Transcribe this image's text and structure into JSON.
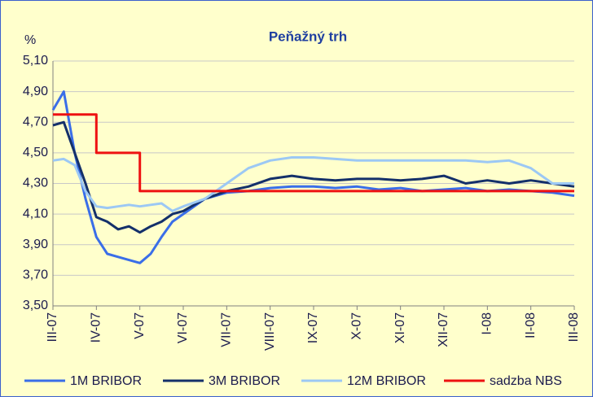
{
  "chart_data": {
    "type": "line",
    "title": "Peňažný trh",
    "y_label": "%",
    "xlim": [
      0,
      12
    ],
    "ylim": [
      3.5,
      5.1
    ],
    "xticks": [
      {
        "value": 0,
        "label": "III-07"
      },
      {
        "value": 1,
        "label": "IV-07"
      },
      {
        "value": 2,
        "label": "V-07"
      },
      {
        "value": 3,
        "label": "VI-07"
      },
      {
        "value": 4,
        "label": "VII-07"
      },
      {
        "value": 5,
        "label": "VIII-07"
      },
      {
        "value": 6,
        "label": "IX-07"
      },
      {
        "value": 7,
        "label": "X-07"
      },
      {
        "value": 8,
        "label": "XI-07"
      },
      {
        "value": 9,
        "label": "XII-07"
      },
      {
        "value": 10,
        "label": "I-08"
      },
      {
        "value": 11,
        "label": "II-08"
      },
      {
        "value": 12,
        "label": "III-08"
      }
    ],
    "yticks": [
      {
        "value": 3.5,
        "label": "3,50"
      },
      {
        "value": 3.7,
        "label": "3,70"
      },
      {
        "value": 3.9,
        "label": "3,90"
      },
      {
        "value": 4.1,
        "label": "4,10"
      },
      {
        "value": 4.3,
        "label": "4,30"
      },
      {
        "value": 4.5,
        "label": "4,50"
      },
      {
        "value": 4.7,
        "label": "4,70"
      },
      {
        "value": 4.9,
        "label": "4,90"
      },
      {
        "value": 5.1,
        "label": "5,10"
      }
    ],
    "grid": true,
    "series": [
      {
        "name": "1M BRIBOR",
        "color": "#3a6ee8",
        "x": [
          0,
          0.25,
          0.5,
          0.75,
          1,
          1.25,
          1.5,
          1.75,
          2,
          2.25,
          2.5,
          2.75,
          3,
          3.5,
          4,
          4.5,
          5,
          5.5,
          6,
          6.5,
          7,
          7.5,
          8,
          8.5,
          9,
          9.5,
          10,
          10.5,
          11,
          11.5,
          12
        ],
        "values": [
          4.78,
          4.9,
          4.5,
          4.2,
          3.95,
          3.84,
          3.82,
          3.8,
          3.78,
          3.84,
          3.95,
          4.05,
          4.1,
          4.2,
          4.24,
          4.25,
          4.27,
          4.28,
          4.28,
          4.27,
          4.28,
          4.26,
          4.27,
          4.25,
          4.26,
          4.27,
          4.25,
          4.26,
          4.25,
          4.24,
          4.22
        ]
      },
      {
        "name": "3M BRIBOR",
        "color": "#14306a",
        "x": [
          0,
          0.25,
          0.5,
          0.75,
          1,
          1.25,
          1.5,
          1.75,
          2,
          2.25,
          2.5,
          2.75,
          3,
          3.5,
          4,
          4.5,
          5,
          5.5,
          6,
          6.5,
          7,
          7.5,
          8,
          8.5,
          9,
          9.5,
          10,
          10.5,
          11,
          11.5,
          12
        ],
        "values": [
          4.68,
          4.7,
          4.5,
          4.3,
          4.08,
          4.05,
          4.0,
          4.02,
          3.98,
          4.02,
          4.05,
          4.1,
          4.12,
          4.2,
          4.25,
          4.28,
          4.33,
          4.35,
          4.33,
          4.32,
          4.33,
          4.33,
          4.32,
          4.33,
          4.35,
          4.3,
          4.32,
          4.3,
          4.32,
          4.3,
          4.28
        ]
      },
      {
        "name": "12M BRIBOR",
        "color": "#9cc8f4",
        "x": [
          0,
          0.25,
          0.5,
          0.75,
          1,
          1.25,
          1.5,
          1.75,
          2,
          2.25,
          2.5,
          2.75,
          3,
          3.5,
          4,
          4.5,
          5,
          5.5,
          6,
          6.5,
          7,
          7.5,
          8,
          8.5,
          9,
          9.5,
          10,
          10.5,
          11,
          11.5,
          12
        ],
        "values": [
          4.45,
          4.46,
          4.42,
          4.25,
          4.15,
          4.14,
          4.15,
          4.16,
          4.15,
          4.16,
          4.17,
          4.12,
          4.15,
          4.2,
          4.3,
          4.4,
          4.45,
          4.47,
          4.47,
          4.46,
          4.45,
          4.45,
          4.45,
          4.45,
          4.45,
          4.45,
          4.44,
          4.45,
          4.4,
          4.3,
          4.3
        ]
      },
      {
        "name": "sadzba NBS",
        "color": "#ee1111",
        "x": [
          0,
          1,
          1,
          2,
          2,
          12
        ],
        "values": [
          4.75,
          4.75,
          4.5,
          4.5,
          4.25,
          4.25
        ]
      }
    ]
  }
}
